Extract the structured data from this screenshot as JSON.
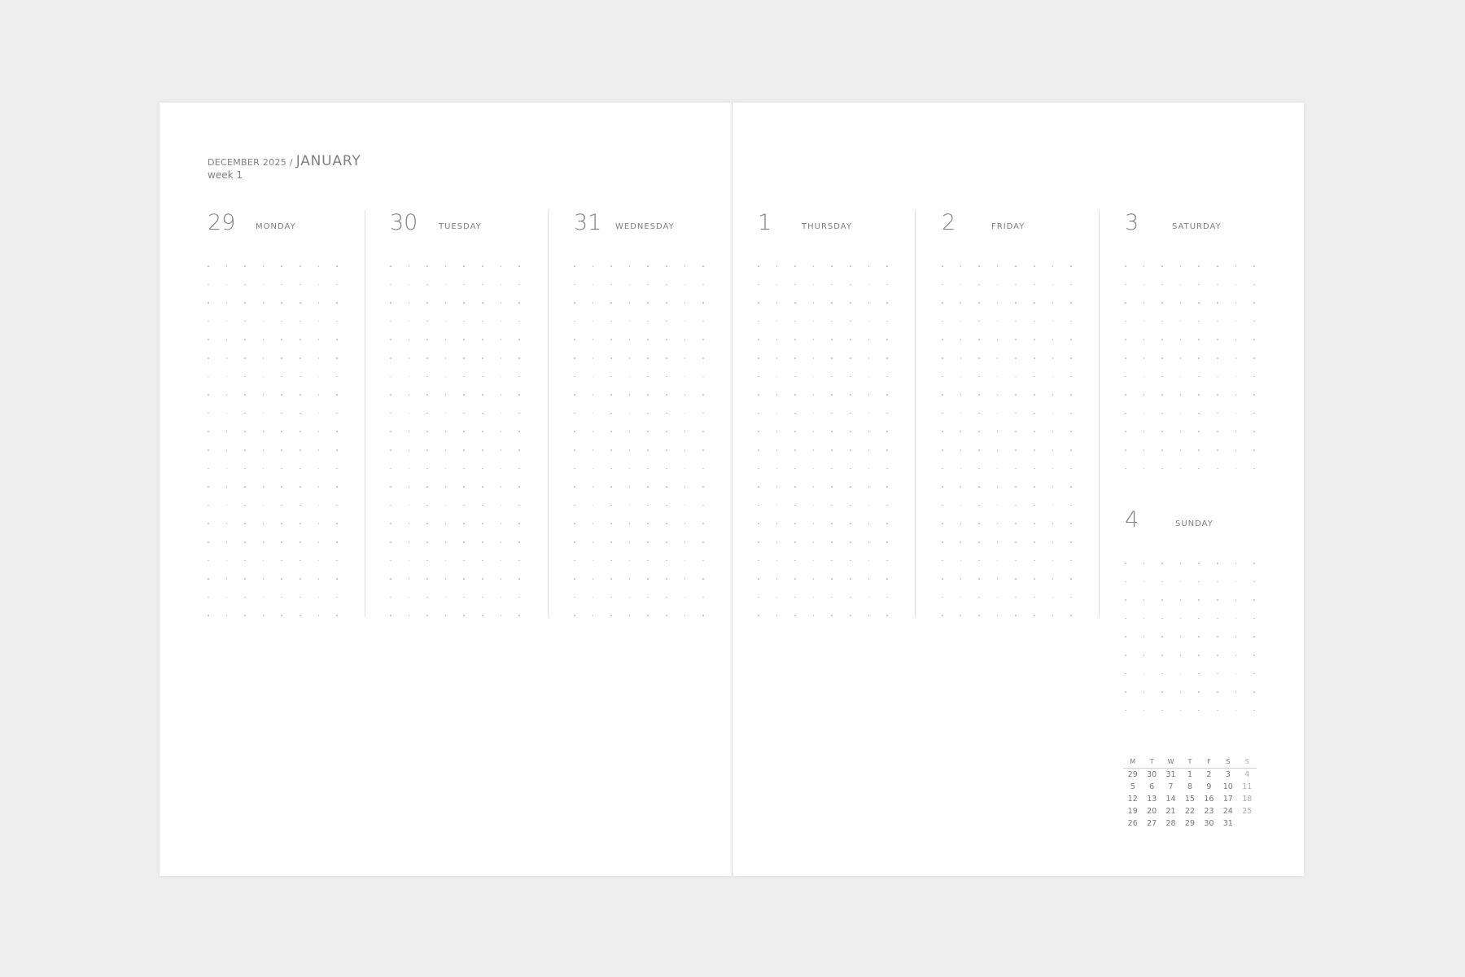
{
  "header": {
    "prev": "DECEMBER 2025",
    "sep": "/",
    "month": "JANUARY",
    "week": "week 1"
  },
  "days": [
    {
      "num": "29",
      "name": "MONDAY"
    },
    {
      "num": "30",
      "name": "TUESDAY"
    },
    {
      "num": "31",
      "name": "WEDNESDAY"
    },
    {
      "num": "1",
      "name": "THURSDAY"
    },
    {
      "num": "2",
      "name": "FRIDAY"
    },
    {
      "num": "3",
      "name": "SATURDAY"
    },
    {
      "num": "4",
      "name": "SUNDAY"
    }
  ],
  "mini_calendar": {
    "headers": [
      "M",
      "T",
      "W",
      "T",
      "F",
      "S",
      "S"
    ],
    "rows": [
      [
        "29",
        "30",
        "31",
        "1",
        "2",
        "3",
        "4"
      ],
      [
        "5",
        "6",
        "7",
        "8",
        "9",
        "10",
        "11"
      ],
      [
        "12",
        "13",
        "14",
        "15",
        "16",
        "17",
        "18"
      ],
      [
        "19",
        "20",
        "21",
        "22",
        "23",
        "24",
        "25"
      ],
      [
        "26",
        "27",
        "28",
        "29",
        "30",
        "31",
        ""
      ]
    ]
  }
}
